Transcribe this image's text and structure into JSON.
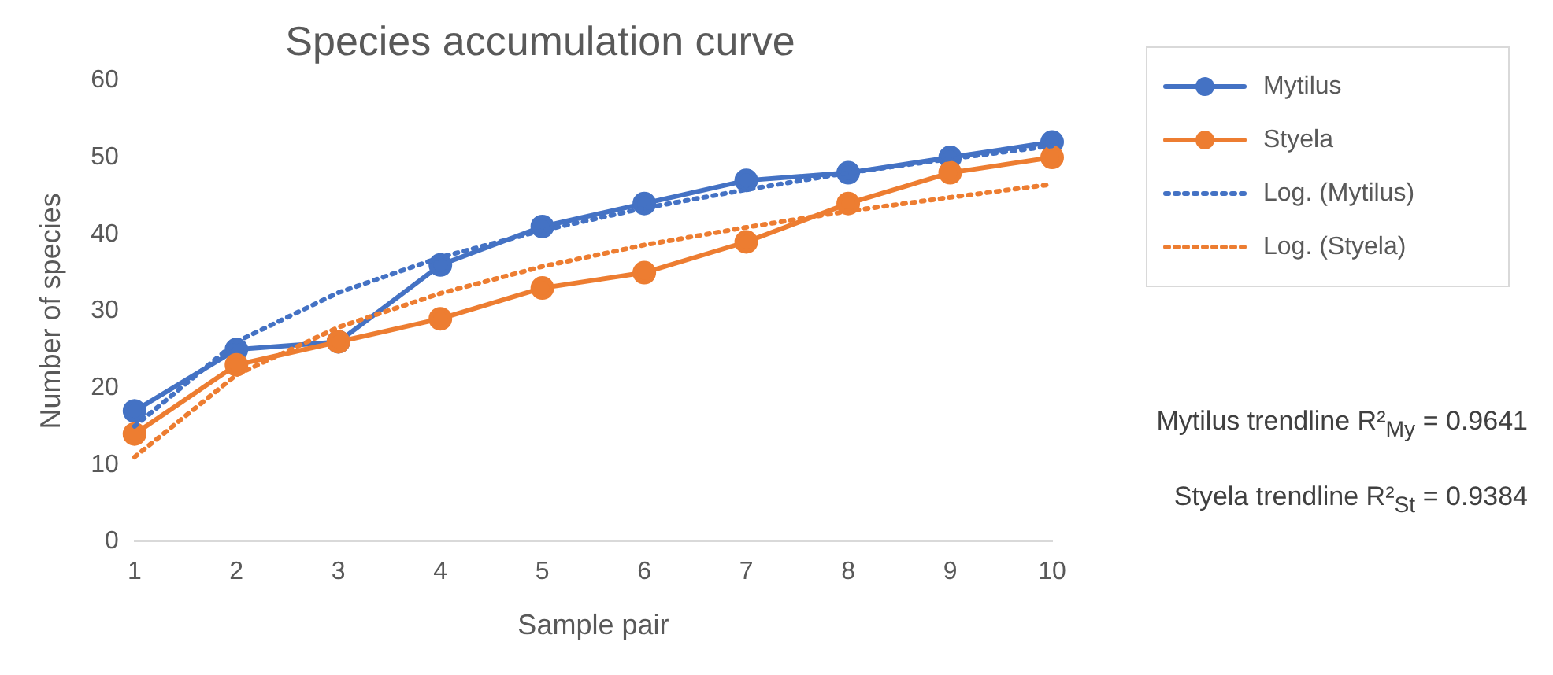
{
  "chart_data": {
    "type": "line",
    "title": "Species accumulation curve",
    "xlabel": "Sample pair",
    "ylabel": "Number of species",
    "categories": [
      "1",
      "2",
      "3",
      "4",
      "5",
      "6",
      "7",
      "8",
      "9",
      "10"
    ],
    "series": [
      {
        "name": "Mytilus",
        "color": "#4472c4",
        "values": [
          17,
          25,
          26,
          36,
          41,
          44,
          47,
          48,
          50,
          52
        ],
        "marker": "circle",
        "line_style": "solid"
      },
      {
        "name": "Styela",
        "color": "#ed7d31",
        "values": [
          14,
          23,
          26,
          29,
          33,
          35,
          39,
          44,
          48,
          50
        ],
        "marker": "circle",
        "line_style": "solid"
      },
      {
        "name": "Log. (Mytilus)",
        "color": "#4472c4",
        "values": [
          15,
          26,
          32.4,
          37,
          40.5,
          43.4,
          45.8,
          48,
          49.8,
          51.5
        ],
        "marker": "none",
        "line_style": "dotted"
      },
      {
        "name": "Log. (Styela)",
        "color": "#ed7d31",
        "values": [
          11,
          21.7,
          27.9,
          32.3,
          35.8,
          38.6,
          40.9,
          43,
          44.8,
          46.5
        ],
        "marker": "none",
        "line_style": "dotted"
      }
    ],
    "ylim": [
      0,
      60
    ],
    "yticks": [
      0,
      10,
      20,
      30,
      40,
      50,
      60
    ],
    "grid": false,
    "legend": "top right",
    "annotations": [
      "Mytilus trendline R²$_{My}$ = 0.9641",
      "Styela trendline R²$_{St}$ = 0.9384"
    ]
  }
}
